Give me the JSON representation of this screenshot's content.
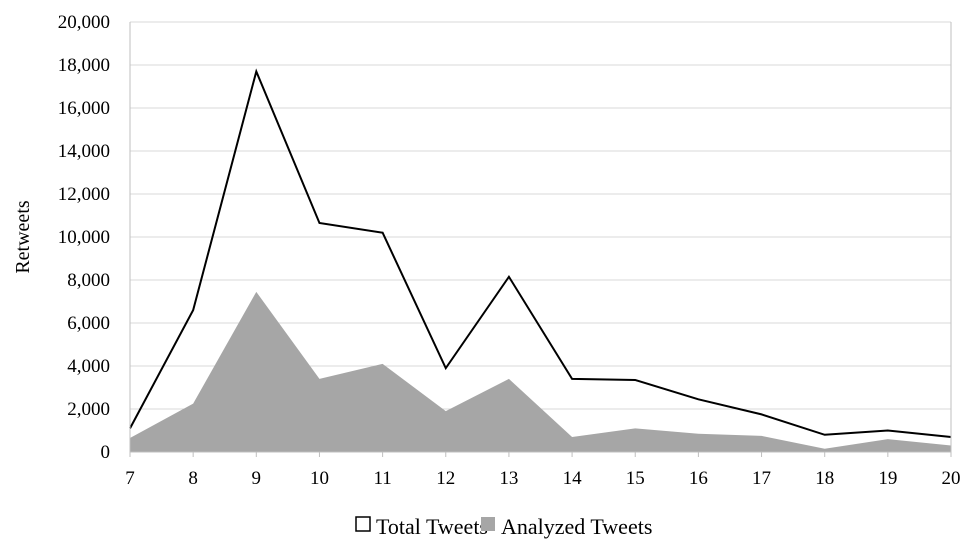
{
  "chart_data": {
    "type": "area",
    "x": [
      7,
      8,
      9,
      10,
      11,
      12,
      13,
      14,
      15,
      16,
      17,
      18,
      19,
      20
    ],
    "series": [
      {
        "name": "Total Tweets",
        "render": "line",
        "color": "#000000",
        "values": [
          1100,
          6600,
          17700,
          10650,
          10200,
          3900,
          8150,
          3400,
          3350,
          2450,
          1750,
          800,
          1000,
          700
        ]
      },
      {
        "name": "Analyzed Tweets",
        "render": "area",
        "color": "#a6a6a6",
        "values": [
          650,
          2250,
          7450,
          3400,
          4100,
          1900,
          3400,
          700,
          1100,
          850,
          750,
          150,
          600,
          300
        ]
      }
    ],
    "ylabel": "Retweets",
    "xlabel": "",
    "ylim": [
      0,
      20000
    ],
    "xlim": [
      7,
      20
    ],
    "y_ticks": [
      "0",
      "2,000",
      "4,000",
      "6,000",
      "8,000",
      "10,000",
      "12,000",
      "14,000",
      "16,000",
      "18,000",
      "20,000"
    ],
    "x_ticks": [
      "7",
      "8",
      "9",
      "10",
      "11",
      "12",
      "13",
      "14",
      "15",
      "16",
      "17",
      "18",
      "19",
      "20"
    ],
    "grid": true,
    "legend_position": "bottom-center"
  }
}
